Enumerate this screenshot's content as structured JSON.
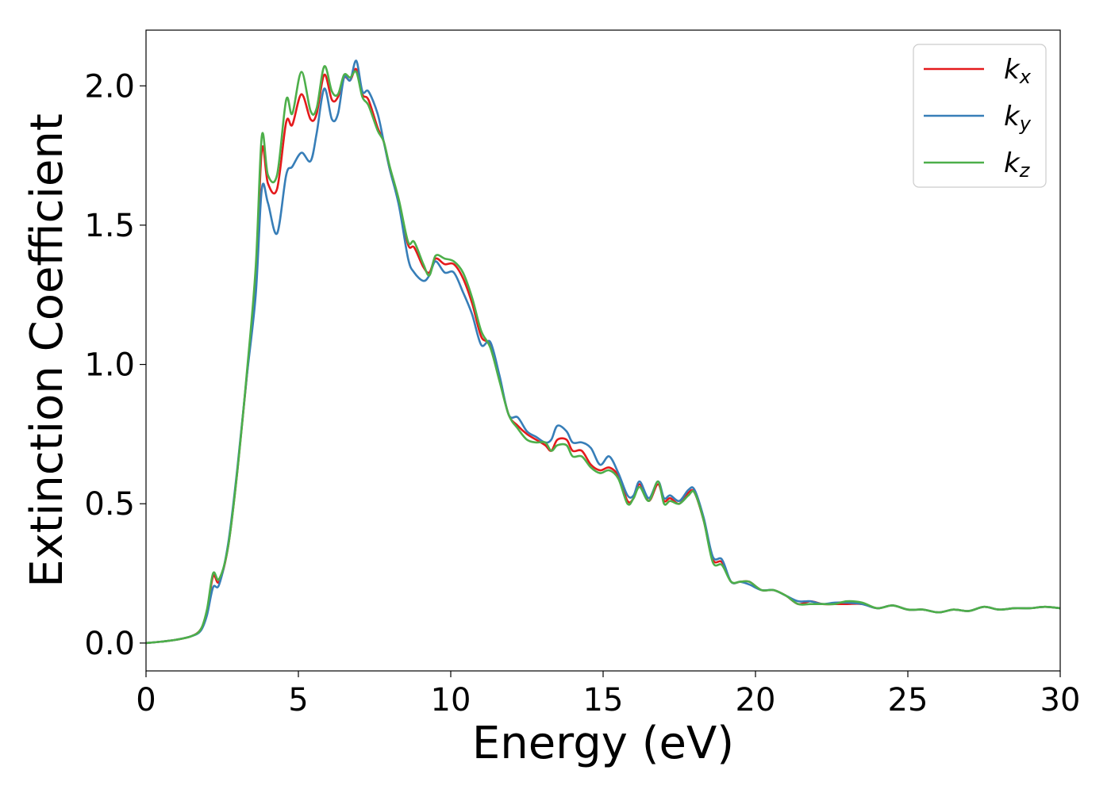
{
  "chart_data": {
    "type": "line",
    "title": "",
    "xlabel": "Energy (eV)",
    "ylabel": "Extinction Coefficient",
    "xlim": [
      0,
      30
    ],
    "ylim": [
      -0.1,
      2.2
    ],
    "xticks": [
      0,
      5,
      10,
      15,
      20,
      25,
      30
    ],
    "xtick_labels": [
      "0",
      "5",
      "10",
      "15",
      "20",
      "25",
      "30"
    ],
    "yticks": [
      0.0,
      0.5,
      1.0,
      1.5,
      2.0
    ],
    "ytick_labels": [
      "0.0",
      "0.5",
      "1.0",
      "1.5",
      "2.0"
    ],
    "grid": false,
    "legend_position": "top-right",
    "series": [
      {
        "name": "k_x",
        "label_main": "k",
        "label_sub": "x",
        "color": "#e41a1c",
        "points": [
          [
            0,
            0
          ],
          [
            0.5,
            0.005
          ],
          [
            1,
            0.012
          ],
          [
            1.5,
            0.025
          ],
          [
            1.8,
            0.05
          ],
          [
            2.0,
            0.11
          ],
          [
            2.2,
            0.24
          ],
          [
            2.4,
            0.22
          ],
          [
            2.7,
            0.35
          ],
          [
            3.0,
            0.62
          ],
          [
            3.3,
            0.95
          ],
          [
            3.6,
            1.3
          ],
          [
            3.8,
            1.77
          ],
          [
            4.0,
            1.65
          ],
          [
            4.3,
            1.63
          ],
          [
            4.6,
            1.87
          ],
          [
            4.8,
            1.86
          ],
          [
            5.1,
            1.97
          ],
          [
            5.4,
            1.88
          ],
          [
            5.6,
            1.9
          ],
          [
            5.85,
            2.04
          ],
          [
            6.1,
            1.95
          ],
          [
            6.3,
            1.96
          ],
          [
            6.5,
            2.03
          ],
          [
            6.7,
            2.02
          ],
          [
            6.9,
            2.06
          ],
          [
            7.1,
            1.97
          ],
          [
            7.3,
            1.95
          ],
          [
            7.6,
            1.85
          ],
          [
            7.8,
            1.8
          ],
          [
            8.0,
            1.7
          ],
          [
            8.3,
            1.58
          ],
          [
            8.6,
            1.43
          ],
          [
            8.8,
            1.42
          ],
          [
            9.1,
            1.35
          ],
          [
            9.3,
            1.33
          ],
          [
            9.5,
            1.38
          ],
          [
            9.8,
            1.36
          ],
          [
            10.1,
            1.36
          ],
          [
            10.4,
            1.31
          ],
          [
            10.7,
            1.22
          ],
          [
            11.0,
            1.1
          ],
          [
            11.3,
            1.07
          ],
          [
            11.6,
            0.95
          ],
          [
            11.9,
            0.82
          ],
          [
            12.2,
            0.78
          ],
          [
            12.5,
            0.75
          ],
          [
            12.8,
            0.73
          ],
          [
            13.1,
            0.71
          ],
          [
            13.3,
            0.69
          ],
          [
            13.5,
            0.73
          ],
          [
            13.8,
            0.73
          ],
          [
            14.0,
            0.69
          ],
          [
            14.3,
            0.69
          ],
          [
            14.6,
            0.64
          ],
          [
            14.9,
            0.62
          ],
          [
            15.2,
            0.63
          ],
          [
            15.5,
            0.6
          ],
          [
            15.8,
            0.51
          ],
          [
            16.0,
            0.52
          ],
          [
            16.2,
            0.57
          ],
          [
            16.5,
            0.51
          ],
          [
            16.8,
            0.57
          ],
          [
            17.0,
            0.51
          ],
          [
            17.2,
            0.52
          ],
          [
            17.5,
            0.5
          ],
          [
            17.8,
            0.54
          ],
          [
            18.0,
            0.54
          ],
          [
            18.3,
            0.44
          ],
          [
            18.6,
            0.3
          ],
          [
            18.9,
            0.29
          ],
          [
            19.2,
            0.22
          ],
          [
            19.5,
            0.22
          ],
          [
            19.8,
            0.22
          ],
          [
            20.2,
            0.19
          ],
          [
            20.6,
            0.19
          ],
          [
            21.0,
            0.17
          ],
          [
            21.4,
            0.14
          ],
          [
            21.8,
            0.15
          ],
          [
            22.2,
            0.14
          ],
          [
            22.6,
            0.14
          ],
          [
            23.0,
            0.14
          ],
          [
            23.5,
            0.14
          ],
          [
            24.0,
            0.125
          ],
          [
            24.5,
            0.135
          ],
          [
            25.0,
            0.12
          ],
          [
            25.5,
            0.12
          ],
          [
            26.0,
            0.11
          ],
          [
            26.5,
            0.12
          ],
          [
            27.0,
            0.115
          ],
          [
            27.5,
            0.13
          ],
          [
            28.0,
            0.12
          ],
          [
            28.5,
            0.125
          ],
          [
            29.0,
            0.125
          ],
          [
            29.5,
            0.13
          ],
          [
            30.0,
            0.125
          ]
        ]
      },
      {
        "name": "k_y",
        "label_main": "k",
        "label_sub": "y",
        "color": "#377eb8",
        "points": [
          [
            0,
            0
          ],
          [
            0.5,
            0.005
          ],
          [
            1,
            0.012
          ],
          [
            1.5,
            0.025
          ],
          [
            1.8,
            0.045
          ],
          [
            2.0,
            0.1
          ],
          [
            2.2,
            0.2
          ],
          [
            2.4,
            0.21
          ],
          [
            2.7,
            0.36
          ],
          [
            3.0,
            0.63
          ],
          [
            3.3,
            0.95
          ],
          [
            3.6,
            1.25
          ],
          [
            3.8,
            1.63
          ],
          [
            4.0,
            1.58
          ],
          [
            4.3,
            1.47
          ],
          [
            4.6,
            1.68
          ],
          [
            4.8,
            1.71
          ],
          [
            5.1,
            1.76
          ],
          [
            5.4,
            1.73
          ],
          [
            5.6,
            1.83
          ],
          [
            5.85,
            1.99
          ],
          [
            6.1,
            1.88
          ],
          [
            6.3,
            1.9
          ],
          [
            6.5,
            2.03
          ],
          [
            6.7,
            2.02
          ],
          [
            6.9,
            2.09
          ],
          [
            7.1,
            1.98
          ],
          [
            7.3,
            1.98
          ],
          [
            7.6,
            1.9
          ],
          [
            7.8,
            1.8
          ],
          [
            8.0,
            1.7
          ],
          [
            8.3,
            1.57
          ],
          [
            8.6,
            1.38
          ],
          [
            8.8,
            1.33
          ],
          [
            9.1,
            1.3
          ],
          [
            9.3,
            1.32
          ],
          [
            9.5,
            1.37
          ],
          [
            9.8,
            1.33
          ],
          [
            10.1,
            1.33
          ],
          [
            10.4,
            1.26
          ],
          [
            10.7,
            1.18
          ],
          [
            11.0,
            1.07
          ],
          [
            11.3,
            1.08
          ],
          [
            11.6,
            0.96
          ],
          [
            11.9,
            0.82
          ],
          [
            12.2,
            0.81
          ],
          [
            12.5,
            0.76
          ],
          [
            12.8,
            0.74
          ],
          [
            13.1,
            0.72
          ],
          [
            13.3,
            0.73
          ],
          [
            13.5,
            0.78
          ],
          [
            13.8,
            0.76
          ],
          [
            14.0,
            0.72
          ],
          [
            14.3,
            0.72
          ],
          [
            14.6,
            0.7
          ],
          [
            14.9,
            0.64
          ],
          [
            15.2,
            0.67
          ],
          [
            15.5,
            0.61
          ],
          [
            15.8,
            0.53
          ],
          [
            16.0,
            0.53
          ],
          [
            16.2,
            0.58
          ],
          [
            16.5,
            0.52
          ],
          [
            16.8,
            0.58
          ],
          [
            17.0,
            0.52
          ],
          [
            17.2,
            0.53
          ],
          [
            17.5,
            0.51
          ],
          [
            17.8,
            0.55
          ],
          [
            18.0,
            0.55
          ],
          [
            18.3,
            0.45
          ],
          [
            18.6,
            0.31
          ],
          [
            18.9,
            0.3
          ],
          [
            19.2,
            0.22
          ],
          [
            19.5,
            0.22
          ],
          [
            19.8,
            0.21
          ],
          [
            20.2,
            0.19
          ],
          [
            20.6,
            0.19
          ],
          [
            21.0,
            0.17
          ],
          [
            21.4,
            0.15
          ],
          [
            21.8,
            0.15
          ],
          [
            22.2,
            0.14
          ],
          [
            22.6,
            0.145
          ],
          [
            23.0,
            0.145
          ],
          [
            23.5,
            0.14
          ],
          [
            24.0,
            0.125
          ],
          [
            24.5,
            0.135
          ],
          [
            25.0,
            0.12
          ],
          [
            25.5,
            0.12
          ],
          [
            26.0,
            0.11
          ],
          [
            26.5,
            0.12
          ],
          [
            27.0,
            0.115
          ],
          [
            27.5,
            0.13
          ],
          [
            28.0,
            0.12
          ],
          [
            28.5,
            0.125
          ],
          [
            29.0,
            0.125
          ],
          [
            29.5,
            0.13
          ],
          [
            30.0,
            0.125
          ]
        ]
      },
      {
        "name": "k_z",
        "label_main": "k",
        "label_sub": "z",
        "color": "#4daf4a",
        "points": [
          [
            0,
            0
          ],
          [
            0.5,
            0.005
          ],
          [
            1,
            0.012
          ],
          [
            1.5,
            0.025
          ],
          [
            1.8,
            0.05
          ],
          [
            2.0,
            0.12
          ],
          [
            2.2,
            0.25
          ],
          [
            2.4,
            0.23
          ],
          [
            2.7,
            0.35
          ],
          [
            3.0,
            0.62
          ],
          [
            3.3,
            0.96
          ],
          [
            3.6,
            1.35
          ],
          [
            3.8,
            1.82
          ],
          [
            4.0,
            1.68
          ],
          [
            4.3,
            1.68
          ],
          [
            4.6,
            1.95
          ],
          [
            4.8,
            1.9
          ],
          [
            5.1,
            2.05
          ],
          [
            5.4,
            1.91
          ],
          [
            5.6,
            1.92
          ],
          [
            5.85,
            2.07
          ],
          [
            6.1,
            1.98
          ],
          [
            6.3,
            1.97
          ],
          [
            6.5,
            2.04
          ],
          [
            6.7,
            2.03
          ],
          [
            6.9,
            2.05
          ],
          [
            7.1,
            1.96
          ],
          [
            7.3,
            1.93
          ],
          [
            7.6,
            1.84
          ],
          [
            7.8,
            1.8
          ],
          [
            8.0,
            1.71
          ],
          [
            8.3,
            1.59
          ],
          [
            8.6,
            1.44
          ],
          [
            8.8,
            1.44
          ],
          [
            9.1,
            1.36
          ],
          [
            9.3,
            1.32
          ],
          [
            9.5,
            1.39
          ],
          [
            9.8,
            1.38
          ],
          [
            10.1,
            1.37
          ],
          [
            10.4,
            1.33
          ],
          [
            10.7,
            1.24
          ],
          [
            11.0,
            1.12
          ],
          [
            11.3,
            1.06
          ],
          [
            11.6,
            0.94
          ],
          [
            11.9,
            0.82
          ],
          [
            12.2,
            0.77
          ],
          [
            12.5,
            0.73
          ],
          [
            12.8,
            0.72
          ],
          [
            13.1,
            0.72
          ],
          [
            13.3,
            0.69
          ],
          [
            13.5,
            0.71
          ],
          [
            13.8,
            0.71
          ],
          [
            14.0,
            0.67
          ],
          [
            14.3,
            0.67
          ],
          [
            14.6,
            0.63
          ],
          [
            14.9,
            0.61
          ],
          [
            15.2,
            0.62
          ],
          [
            15.5,
            0.59
          ],
          [
            15.8,
            0.5
          ],
          [
            16.0,
            0.52
          ],
          [
            16.2,
            0.56
          ],
          [
            16.5,
            0.51
          ],
          [
            16.8,
            0.58
          ],
          [
            17.0,
            0.5
          ],
          [
            17.2,
            0.51
          ],
          [
            17.5,
            0.5
          ],
          [
            17.8,
            0.53
          ],
          [
            18.0,
            0.54
          ],
          [
            18.3,
            0.44
          ],
          [
            18.6,
            0.29
          ],
          [
            18.9,
            0.28
          ],
          [
            19.2,
            0.22
          ],
          [
            19.5,
            0.22
          ],
          [
            19.8,
            0.22
          ],
          [
            20.2,
            0.19
          ],
          [
            20.6,
            0.19
          ],
          [
            21.0,
            0.17
          ],
          [
            21.4,
            0.14
          ],
          [
            21.8,
            0.14
          ],
          [
            22.2,
            0.14
          ],
          [
            22.6,
            0.14
          ],
          [
            23.0,
            0.15
          ],
          [
            23.5,
            0.145
          ],
          [
            24.0,
            0.125
          ],
          [
            24.5,
            0.135
          ],
          [
            25.0,
            0.12
          ],
          [
            25.5,
            0.12
          ],
          [
            26.0,
            0.11
          ],
          [
            26.5,
            0.12
          ],
          [
            27.0,
            0.115
          ],
          [
            27.5,
            0.13
          ],
          [
            28.0,
            0.12
          ],
          [
            28.5,
            0.125
          ],
          [
            29.0,
            0.125
          ],
          [
            29.5,
            0.13
          ],
          [
            30.0,
            0.125
          ]
        ]
      }
    ]
  }
}
